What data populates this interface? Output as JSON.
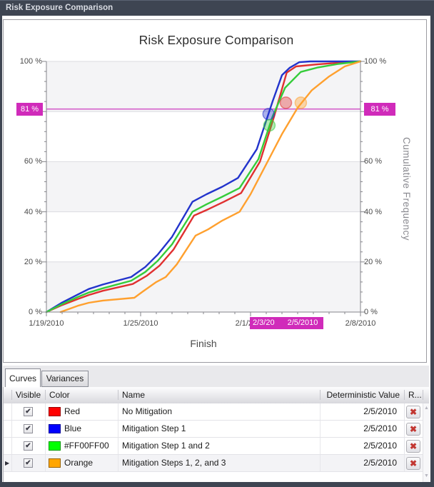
{
  "window": {
    "title": "Risk Exposure Comparison"
  },
  "colors": {
    "titlebar": "#3E4552",
    "accent_magenta": "#D02BBA",
    "threshold_line": "#D45FCB",
    "plot_band": "#F4F4F6",
    "gridline": "#DCDCE0",
    "axis": "#85858B"
  },
  "icons": {
    "checkbox_check": "✔",
    "delete_x": "✖",
    "current_row_arrow": "▶",
    "scroll_up": "▲",
    "scroll_down": "▼"
  },
  "chart": {
    "title": "Risk Exposure Comparison",
    "xlabel": "Finish",
    "ylabel_right": "Cumulative Frequency",
    "threshold": {
      "pct": 81,
      "label": "81 %"
    },
    "highlight_labels": [
      "2/3/20",
      "2/5/2010"
    ],
    "y_ticks_left": [
      {
        "pct": 100,
        "label": "100 %"
      },
      {
        "pct": 60,
        "label": "60 %"
      },
      {
        "pct": 40,
        "label": "40 %"
      },
      {
        "pct": 20,
        "label": "20 %"
      },
      {
        "pct": 0,
        "label": "0 %"
      }
    ],
    "y_ticks_right": [
      {
        "pct": 100,
        "label": "100 %"
      },
      {
        "pct": 60,
        "label": "60 %"
      },
      {
        "pct": 40,
        "label": "40 %"
      },
      {
        "pct": 20,
        "label": "20 %"
      },
      {
        "pct": 0,
        "label": "0 %"
      }
    ]
  },
  "chart_data": {
    "type": "line",
    "title": "Risk Exposure Comparison",
    "xlabel": "Finish",
    "ylabel": "Cumulative Frequency",
    "x_axis": {
      "unit": "date",
      "range_days": [
        0,
        20
      ],
      "tick_days": [
        0,
        6,
        13,
        20
      ],
      "tick_labels": [
        "1/19/2010",
        "1/25/2010",
        "2/1/2010",
        "2/8/2010"
      ],
      "minor_tick_every_days": 1
    },
    "y_axis": {
      "unit": "%",
      "range": [
        0,
        100
      ],
      "major_step": 20,
      "minor_step": 4,
      "grid": true
    },
    "threshold_pct": 81,
    "deterministic_date": "2/5/2010",
    "crosshair_labels": [
      {
        "text": "2/3/20",
        "day": 15
      },
      {
        "text": "2/5/2010",
        "day": 17
      }
    ],
    "series": [
      {
        "key": "red",
        "name": "No Mitigation",
        "color": "#E03030",
        "marker_day_pct": [
          15.25,
          83.5
        ],
        "points": [
          [
            0,
            0
          ],
          [
            1,
            2.8
          ],
          [
            2,
            5.2
          ],
          [
            2.7,
            6.8
          ],
          [
            3.6,
            8.5
          ],
          [
            5.5,
            11.2
          ],
          [
            6.4,
            14.5
          ],
          [
            7.2,
            18.5
          ],
          [
            8.1,
            25
          ],
          [
            9.4,
            38.5
          ],
          [
            10.3,
            41
          ],
          [
            11.3,
            44
          ],
          [
            12.4,
            47.5
          ],
          [
            13.6,
            60
          ],
          [
            14.5,
            78
          ],
          [
            15.3,
            95.5
          ],
          [
            15.9,
            98
          ],
          [
            17.2,
            98.8
          ],
          [
            18.5,
            99.4
          ],
          [
            20,
            100
          ]
        ]
      },
      {
        "key": "blue",
        "name": "Mitigation Step 1",
        "color": "#2233CC",
        "marker_day_pct": [
          14.15,
          79
        ],
        "points": [
          [
            0,
            0
          ],
          [
            1,
            3.8
          ],
          [
            2,
            7
          ],
          [
            2.7,
            9.2
          ],
          [
            3.6,
            11
          ],
          [
            5.4,
            14
          ],
          [
            6.3,
            18
          ],
          [
            7.1,
            23
          ],
          [
            8,
            30
          ],
          [
            9.3,
            44
          ],
          [
            10.2,
            47
          ],
          [
            11.2,
            50
          ],
          [
            12.2,
            53.5
          ],
          [
            13.4,
            65
          ],
          [
            14.4,
            84
          ],
          [
            15,
            94.5
          ],
          [
            15.5,
            97.5
          ],
          [
            16.1,
            99.7
          ],
          [
            16.8,
            100
          ],
          [
            20,
            100
          ]
        ]
      },
      {
        "key": "green",
        "name": "Mitigation Step 1 and 2",
        "color": "#35CC3A",
        "marker_day_pct": [
          14.2,
          74.5
        ],
        "points": [
          [
            0,
            0
          ],
          [
            1,
            3.2
          ],
          [
            2,
            6
          ],
          [
            2.7,
            7.8
          ],
          [
            3.6,
            9.5
          ],
          [
            5.4,
            12.5
          ],
          [
            6.3,
            16
          ],
          [
            7.1,
            20.5
          ],
          [
            8,
            27
          ],
          [
            9.3,
            40
          ],
          [
            10.2,
            43
          ],
          [
            11.2,
            46
          ],
          [
            12.3,
            49.5
          ],
          [
            13.5,
            61
          ],
          [
            14.4,
            78
          ],
          [
            15.2,
            89.5
          ],
          [
            16.2,
            95.8
          ],
          [
            17.3,
            97.6
          ],
          [
            18.6,
            99
          ],
          [
            20,
            100
          ]
        ]
      },
      {
        "key": "orange",
        "name": "Mitigation Steps 1, 2, and 3",
        "color": "#FFA02E",
        "marker_day_pct": [
          16.2,
          83.5
        ],
        "points": [
          [
            0.9,
            0
          ],
          [
            2,
            2.5
          ],
          [
            2.7,
            3.7
          ],
          [
            3.6,
            4.6
          ],
          [
            5.6,
            5.7
          ],
          [
            6.1,
            8
          ],
          [
            7,
            12
          ],
          [
            7.6,
            14
          ],
          [
            8.3,
            19
          ],
          [
            9.5,
            30.5
          ],
          [
            10.3,
            33
          ],
          [
            11.2,
            36.5
          ],
          [
            12.3,
            40
          ],
          [
            13,
            47
          ],
          [
            14,
            59
          ],
          [
            15,
            71
          ],
          [
            16,
            81.5
          ],
          [
            16.9,
            88.5
          ],
          [
            18,
            94
          ],
          [
            19,
            98
          ],
          [
            20,
            100
          ]
        ]
      }
    ]
  },
  "tabs": [
    {
      "label": "Curves",
      "active": true
    },
    {
      "label": "Variances",
      "active": false
    }
  ],
  "table": {
    "columns": [
      {
        "label": "Visible"
      },
      {
        "label": "Color"
      },
      {
        "label": "Name"
      },
      {
        "label": "Deterministic Value"
      },
      {
        "label": "R..."
      }
    ],
    "rows": [
      {
        "visible": true,
        "color_hex": "#FF0000",
        "color_name": "Red",
        "name": "No Mitigation",
        "deterministic_value": "2/5/2010",
        "current": false
      },
      {
        "visible": true,
        "color_hex": "#0000FF",
        "color_name": "Blue",
        "name": "Mitigation Step 1",
        "deterministic_value": "2/5/2010",
        "current": false
      },
      {
        "visible": true,
        "color_hex": "#00FF00",
        "color_name": "#FF00FF00",
        "name": "Mitigation Step 1 and 2",
        "deterministic_value": "2/5/2010",
        "current": false
      },
      {
        "visible": true,
        "color_hex": "#FFA500",
        "color_name": "Orange",
        "name": "Mitigation Steps 1, 2, and 3",
        "deterministic_value": "2/5/2010",
        "current": true
      }
    ]
  }
}
